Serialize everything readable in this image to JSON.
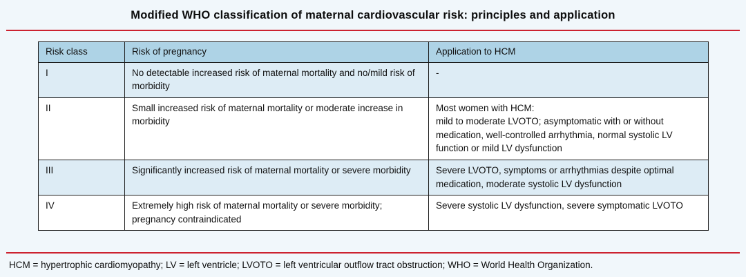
{
  "page": {
    "title": "Modified WHO classification of maternal cardiovascular risk: principles and application",
    "footnote": "HCM = hypertrophic cardiomyopathy; LV = left ventricle; LVOTO = left ventricular outflow tract obstruction; WHO = World Health Organization."
  },
  "table": {
    "headers": [
      "Risk class",
      "Risk of pregnancy",
      "Application to HCM"
    ],
    "rows": [
      {
        "risk_class": "I",
        "risk_of_pregnancy": "No detectable increased risk of maternal mortality and no/mild risk of morbidity",
        "application_to_hcm": "-"
      },
      {
        "risk_class": "II",
        "risk_of_pregnancy": "Small increased risk of maternal mortality or moderate increase in morbidity",
        "application_to_hcm": "Most women with HCM:\nmild to moderate LVOTO; asymptomatic with or without medication, well-controlled arrhythmia, normal systolic LV function or mild LV dysfunction"
      },
      {
        "risk_class": "III",
        "risk_of_pregnancy": "Significantly increased risk of maternal mortality or severe morbidity",
        "application_to_hcm": "Severe LVOTO, symptoms or arrhythmias despite optimal medication, moderate systolic LV dysfunction"
      },
      {
        "risk_class": "IV",
        "risk_of_pregnancy": "Extremely high risk of maternal mortality or severe morbidity; pregnancy contraindicated",
        "application_to_hcm": "Severe systolic LV dysfunction, severe symptomatic LVOTO"
      }
    ]
  },
  "colors": {
    "header_row_bg": "#aed3e6",
    "tinted_row_bg": "#ddecf5",
    "rule_red": "#cc2230",
    "border_black": "#1c1c1c",
    "page_bg": "#f1f7fb"
  }
}
